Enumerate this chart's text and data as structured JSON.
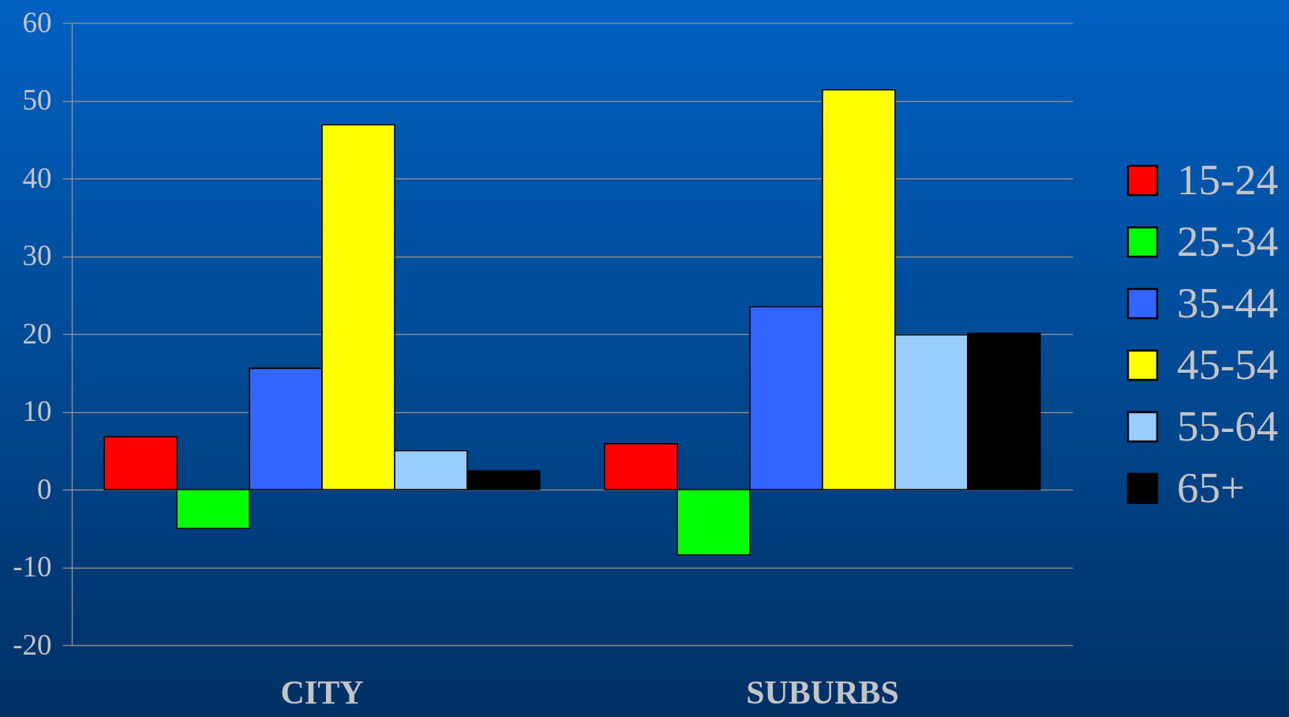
{
  "chart_data": {
    "type": "bar",
    "categories": [
      "CITY",
      "SUBURBS"
    ],
    "series": [
      {
        "name": "15-24",
        "color": "#ff0000",
        "values": [
          6.8,
          5.9
        ]
      },
      {
        "name": "25-34",
        "color": "#00ff00",
        "values": [
          -5.0,
          -8.4
        ]
      },
      {
        "name": "35-44",
        "color": "#3366ff",
        "values": [
          15.6,
          23.5
        ]
      },
      {
        "name": "45-54",
        "color": "#ffff00",
        "values": [
          46.9,
          51.4
        ]
      },
      {
        "name": "55-64",
        "color": "#99ccff",
        "values": [
          5.0,
          19.9
        ]
      },
      {
        "name": "65+",
        "color": "#000000",
        "values": [
          2.4,
          20.1
        ]
      }
    ],
    "ylim": [
      -20,
      60
    ],
    "yticks": [
      -20,
      -10,
      0,
      10,
      20,
      30,
      40,
      50,
      60
    ],
    "grid": "y",
    "legend": "right"
  }
}
